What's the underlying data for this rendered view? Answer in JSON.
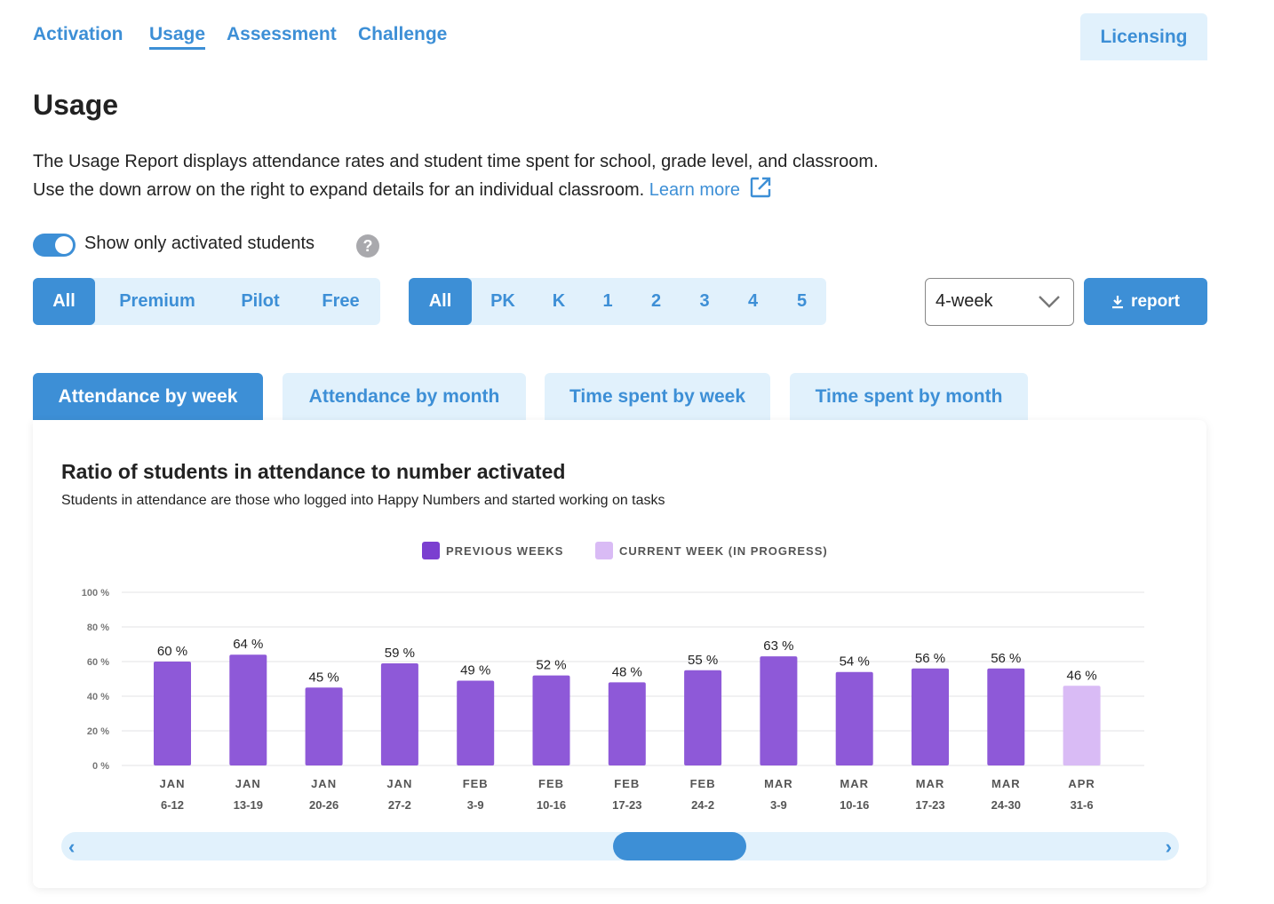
{
  "nav": {
    "items": [
      {
        "label": "Activation"
      },
      {
        "label": "Usage"
      },
      {
        "label": "Assessment"
      },
      {
        "label": "Challenge"
      }
    ],
    "active": "Usage",
    "licensing_label": "Licensing"
  },
  "page": {
    "title": "Usage",
    "description_line1": "The Usage Report displays attendance rates and student time spent for school, grade level, and classroom.",
    "description_line2": "Use the down arrow on the right to expand details for an individual classroom.",
    "learn_more": "Learn more"
  },
  "toggle": {
    "label": "Show only activated students",
    "on": true,
    "help_glyph": "?"
  },
  "filters": {
    "license_types": [
      "All",
      "Premium",
      "Pilot",
      "Free"
    ],
    "license_selected": "All",
    "grades": [
      "All",
      "PK",
      "K",
      "1",
      "2",
      "3",
      "4",
      "5"
    ],
    "grade_selected": "All",
    "period": "4-week",
    "report_label": "report"
  },
  "chart_tabs": {
    "items": [
      {
        "label": "Attendance by week"
      },
      {
        "label": "Attendance by month"
      },
      {
        "label": "Time spent by week"
      },
      {
        "label": "Time spent by month"
      }
    ],
    "selected": "Attendance by week"
  },
  "chart_data": {
    "type": "bar",
    "title": "Ratio of students in attendance to number activated",
    "subtitle": "Students in attendance are those who logged into Happy Numbers and started working on tasks",
    "legend": [
      {
        "name": "PREVIOUS WEEKS",
        "color": "#8e59d8"
      },
      {
        "name": "CURRENT WEEK (IN PROGRESS)",
        "color": "#d9bbf5"
      }
    ],
    "y_ticks": [
      "100 %",
      "80 %",
      "60 %",
      "40 %",
      "20 %",
      "0 %"
    ],
    "ylim": [
      0,
      100
    ],
    "grid": true,
    "categories": [
      {
        "month": "JAN",
        "range": "6-12"
      },
      {
        "month": "JAN",
        "range": "13-19"
      },
      {
        "month": "JAN",
        "range": "20-26"
      },
      {
        "month": "JAN",
        "range": "27-2"
      },
      {
        "month": "FEB",
        "range": "3-9"
      },
      {
        "month": "FEB",
        "range": "10-16"
      },
      {
        "month": "FEB",
        "range": "17-23"
      },
      {
        "month": "FEB",
        "range": "24-2"
      },
      {
        "month": "MAR",
        "range": "3-9"
      },
      {
        "month": "MAR",
        "range": "10-16"
      },
      {
        "month": "MAR",
        "range": "17-23"
      },
      {
        "month": "MAR",
        "range": "24-30"
      },
      {
        "month": "APR",
        "range": "31-6"
      }
    ],
    "values": [
      60,
      64,
      45,
      59,
      49,
      52,
      48,
      55,
      63,
      54,
      56,
      56,
      46
    ],
    "current_index": 12,
    "value_suffix": " %"
  }
}
